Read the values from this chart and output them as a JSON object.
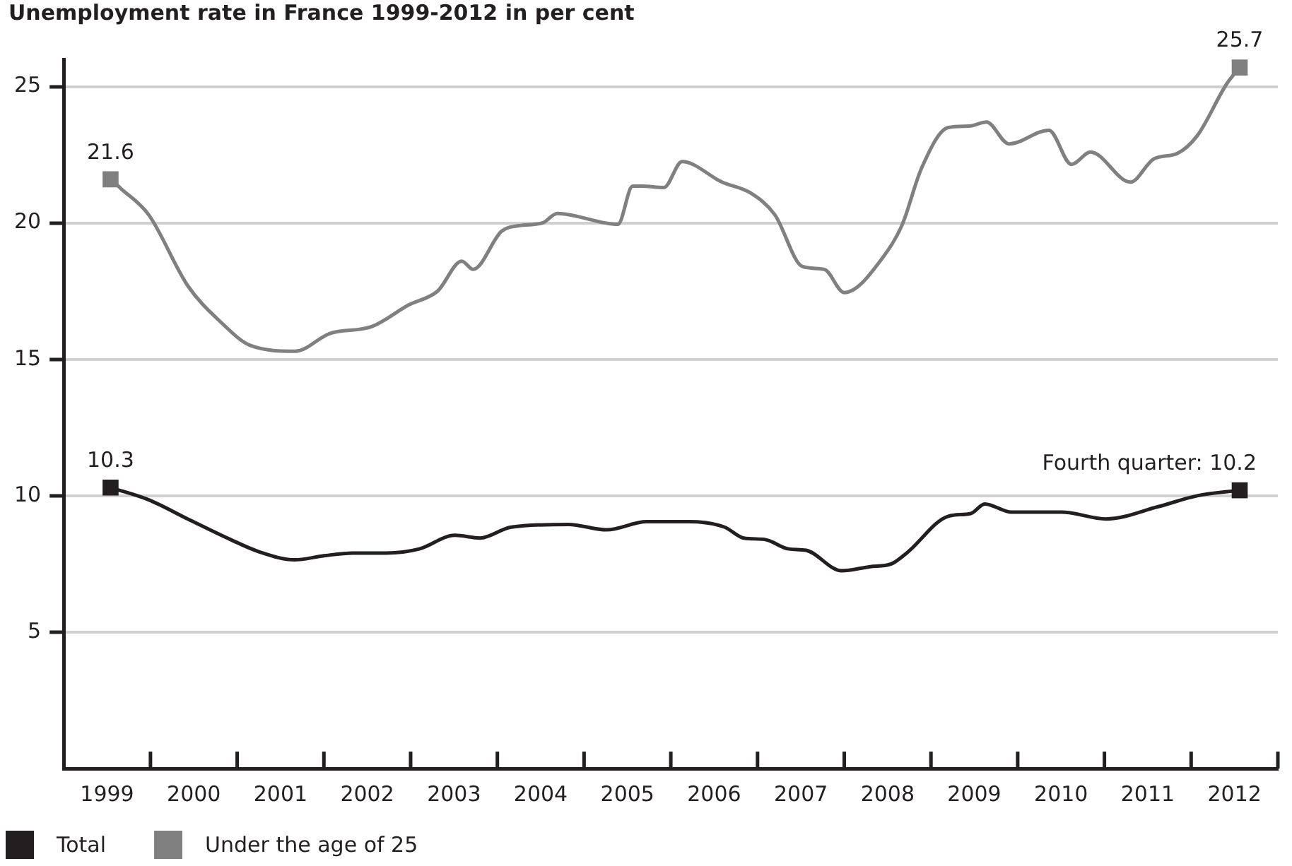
{
  "chart_data": {
    "type": "line",
    "title": "Unemployment rate in France 1999-2012 in per cent",
    "xlim": [
      1999,
      2013
    ],
    "xticks": [
      {
        "value": 1999.5,
        "label": "1999"
      },
      {
        "value": 2000,
        "label": null
      },
      {
        "value": 2000.5,
        "label": "2000"
      },
      {
        "value": 2001,
        "label": null
      },
      {
        "value": 2001.5,
        "label": "2001"
      },
      {
        "value": 2002,
        "label": null
      },
      {
        "value": 2002.5,
        "label": "2002"
      },
      {
        "value": 2003,
        "label": null
      },
      {
        "value": 2003.5,
        "label": "2003"
      },
      {
        "value": 2004,
        "label": null
      },
      {
        "value": 2004.5,
        "label": "2004"
      },
      {
        "value": 2005,
        "label": null
      },
      {
        "value": 2005.5,
        "label": "2005"
      },
      {
        "value": 2006,
        "label": null
      },
      {
        "value": 2006.5,
        "label": "2006"
      },
      {
        "value": 2007,
        "label": null
      },
      {
        "value": 2007.5,
        "label": "2007"
      },
      {
        "value": 2008,
        "label": null
      },
      {
        "value": 2008.5,
        "label": "2008"
      },
      {
        "value": 2009,
        "label": null
      },
      {
        "value": 2009.5,
        "label": "2009"
      },
      {
        "value": 2010,
        "label": null
      },
      {
        "value": 2010.5,
        "label": "2010"
      },
      {
        "value": 2011,
        "label": null
      },
      {
        "value": 2011.5,
        "label": "2011"
      },
      {
        "value": 2012,
        "label": null
      },
      {
        "value": 2012.5,
        "label": "2012"
      },
      {
        "value": 2013,
        "label": null
      }
    ],
    "ylim": [
      0,
      26
    ],
    "yticks": [
      5,
      10,
      15,
      20,
      25
    ],
    "grid": "y",
    "legend": "bottom left",
    "series": [
      {
        "name": "Total",
        "color": "#231f20",
        "x": [
          1999.54,
          1999.98,
          2000.43,
          2000.92,
          2001.25,
          2001.66,
          2002.0,
          2002.33,
          2002.72,
          2003.1,
          2003.51,
          2003.8,
          2004.16,
          2004.82,
          2005.26,
          2005.72,
          2006.21,
          2006.62,
          2006.84,
          2007.08,
          2007.36,
          2007.56,
          2007.97,
          2008.3,
          2008.54,
          2008.72,
          2009.2,
          2009.46,
          2009.62,
          2009.93,
          2010.51,
          2011.02,
          2011.62,
          2012.07,
          2012.56
        ],
        "values": [
          10.3,
          9.85,
          9.15,
          8.4,
          7.95,
          7.65,
          7.8,
          7.9,
          7.9,
          8.05,
          8.55,
          8.45,
          8.85,
          8.95,
          8.75,
          9.05,
          9.05,
          8.85,
          8.45,
          8.4,
          8.05,
          8.0,
          7.25,
          7.4,
          7.5,
          7.9,
          9.25,
          9.35,
          9.7,
          9.4,
          9.4,
          9.15,
          9.6,
          10.0,
          10.2
        ]
      },
      {
        "name": "Under the age of 25",
        "color": "#808080",
        "x": [
          1999.54,
          1999.66,
          1999.98,
          2000.43,
          2000.8,
          2001.16,
          2001.67,
          2002.07,
          2002.55,
          2002.98,
          2003.31,
          2003.59,
          2003.72,
          2004.05,
          2004.25,
          2004.52,
          2004.69,
          2005.39,
          2005.56,
          2005.67,
          2005.92,
          2006.13,
          2006.59,
          2006.92,
          2007.2,
          2007.52,
          2007.77,
          2008.0,
          2008.46,
          2008.67,
          2008.89,
          2009.2,
          2009.44,
          2009.64,
          2009.9,
          2010.36,
          2010.62,
          2010.84,
          2011.3,
          2011.57,
          2011.84,
          2012.07,
          2012.41,
          2012.56
        ],
        "values": [
          21.6,
          21.26,
          20.3,
          17.7,
          16.4,
          15.5,
          15.3,
          15.95,
          16.2,
          17.0,
          17.5,
          18.6,
          18.3,
          19.7,
          19.9,
          20.0,
          20.35,
          19.95,
          21.35,
          21.35,
          21.3,
          22.25,
          21.5,
          21.1,
          20.3,
          18.4,
          18.3,
          17.45,
          18.8,
          19.95,
          22.0,
          23.5,
          23.55,
          23.7,
          22.9,
          23.4,
          22.15,
          22.6,
          21.5,
          22.35,
          22.55,
          23.2,
          25.1,
          25.7
        ]
      },
      {
        "type": "scatter",
        "marker": "square",
        "color": "#231f20",
        "x": [
          1999.54,
          2012.56
        ],
        "values": [
          10.3,
          10.2
        ],
        "value_labels": [
          "10.3",
          "Fourth quarter: 10.2"
        ]
      },
      {
        "type": "scatter",
        "marker": "square",
        "color": "#808080",
        "x": [
          1999.54,
          2012.56
        ],
        "values": [
          21.6,
          25.7
        ],
        "value_labels": [
          "21.6",
          "25.7"
        ]
      }
    ]
  }
}
